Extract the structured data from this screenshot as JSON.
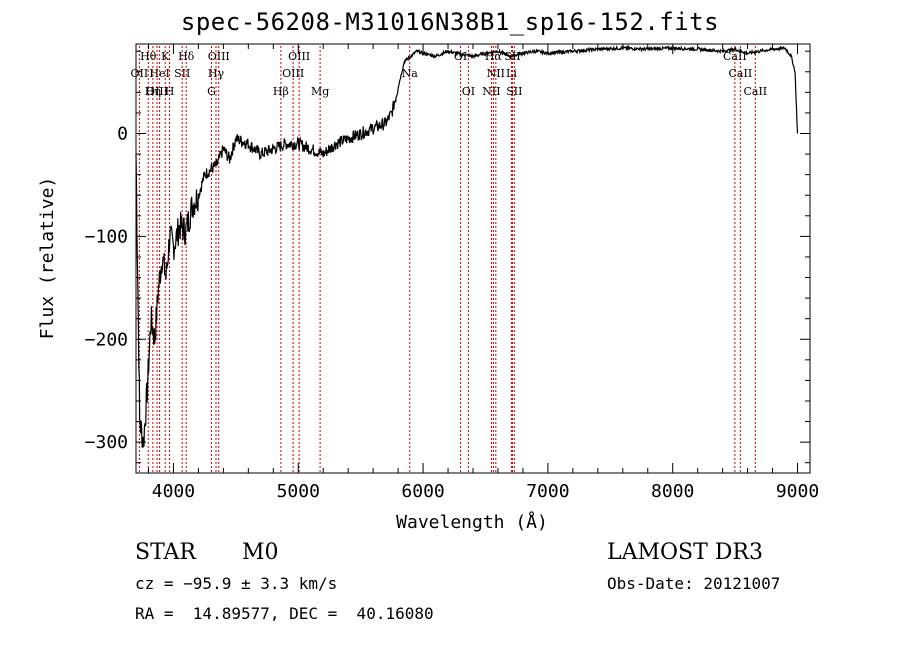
{
  "title": "spec-56208-M31016N38B1_sp16-152.fits",
  "info": {
    "class": "STAR",
    "subclass": "M0",
    "survey": "LAMOST DR3",
    "cz": "cz = −95.9 ± 3.3 km/s",
    "obs_date": "Obs-Date: 20121007",
    "radec": "RA =  14.89577, DEC =  40.16080"
  },
  "chart_data": {
    "type": "line",
    "title": "spec-56208-M31016N38B1_sp16-152.fits",
    "xlabel": "Wavelength (Å)",
    "ylabel": "Flux (relative)",
    "xlim": [
      3700,
      9100
    ],
    "ylim": [
      -330,
      87
    ],
    "x_ticks": [
      4000,
      5000,
      6000,
      7000,
      8000,
      9000
    ],
    "x_tick_labels": [
      "4000",
      "5000",
      "6000",
      "7000",
      "8000",
      "9000"
    ],
    "y_ticks": [
      -300,
      -200,
      -100,
      0
    ],
    "y_tick_labels": [
      "−300",
      "−200",
      "−100",
      "0"
    ],
    "line_color": "#000000",
    "marker_color": "#cc0000",
    "series": [
      {
        "x": [
          3700,
          3730,
          3760,
          3790,
          3820,
          3850,
          3880,
          3910,
          3940,
          3970,
          4000,
          4050,
          4100,
          4150,
          4200,
          4250,
          4300,
          4350,
          4400,
          4450,
          4500,
          4600,
          4700,
          4800,
          4900,
          5000,
          5100,
          5200,
          5300,
          5400,
          5500,
          5600,
          5700,
          5750,
          5800,
          5850,
          5900,
          5950,
          6000,
          6100,
          6200,
          6300,
          6400,
          6500,
          6600,
          6700,
          6800,
          6900,
          7000,
          7200,
          7400,
          7600,
          7800,
          8000,
          8200,
          8400,
          8500,
          8600,
          8700,
          8800,
          8900,
          8950,
          8980,
          9000
        ],
        "y": [
          -20,
          -280,
          -300,
          -250,
          -180,
          -200,
          -150,
          -120,
          -140,
          -100,
          -110,
          -90,
          -95,
          -70,
          -60,
          -40,
          -35,
          -30,
          -15,
          -25,
          -5,
          -10,
          -20,
          -15,
          -10,
          -10,
          -15,
          -20,
          -10,
          -5,
          0,
          5,
          10,
          20,
          45,
          70,
          75,
          80,
          78,
          75,
          80,
          77,
          75,
          78,
          80,
          75,
          78,
          80,
          78,
          80,
          82,
          83,
          82,
          83,
          82,
          80,
          82,
          78,
          80,
          82,
          83,
          75,
          60,
          0
        ]
      }
    ],
    "lines": [
      {
        "name": "Hθ",
        "x": 3798,
        "row": 0
      },
      {
        "name": "OII",
        "x": 3727,
        "row": 1
      },
      {
        "name": "OIII",
        "x": 3869,
        "row": 2
      },
      {
        "name": "HeI",
        "x": 3889,
        "row": 1
      },
      {
        "name": "K",
        "x": 3934,
        "row": 0
      },
      {
        "name": "Hη",
        "x": 3835,
        "row": 2
      },
      {
        "name": "SII",
        "x": 4070,
        "row": 1
      },
      {
        "name": "H",
        "x": 3969,
        "row": 2
      },
      {
        "name": "Hδ",
        "x": 4102,
        "row": 0
      },
      {
        "name": "OIII",
        "x": 4363,
        "row": 0
      },
      {
        "name": "Hγ",
        "x": 4341,
        "row": 1
      },
      {
        "name": "G",
        "x": 4305,
        "row": 2
      },
      {
        "name": "Hβ",
        "x": 4861,
        "row": 2
      },
      {
        "name": "OIII",
        "x": 5007,
        "row": 0
      },
      {
        "name": "OIII",
        "x": 4959,
        "row": 1
      },
      {
        "name": "Mg",
        "x": 5175,
        "row": 2
      },
      {
        "name": "Na",
        "x": 5893,
        "row": 1
      },
      {
        "name": "OI",
        "x": 6300,
        "row": 0
      },
      {
        "name": "OI",
        "x": 6363,
        "row": 2
      },
      {
        "name": "Hα",
        "x": 6563,
        "row": 0
      },
      {
        "name": "NII",
        "x": 6583,
        "row": 1
      },
      {
        "name": "NII",
        "x": 6548,
        "row": 2
      },
      {
        "name": "SII",
        "x": 6716,
        "row": 0
      },
      {
        "name": "Li",
        "x": 6708,
        "row": 1
      },
      {
        "name": "SII",
        "x": 6731,
        "row": 2
      },
      {
        "name": "CaII",
        "x": 8498,
        "row": 0
      },
      {
        "name": "CaII",
        "x": 8542,
        "row": 1
      },
      {
        "name": "CaII",
        "x": 8662,
        "row": 2
      }
    ]
  }
}
